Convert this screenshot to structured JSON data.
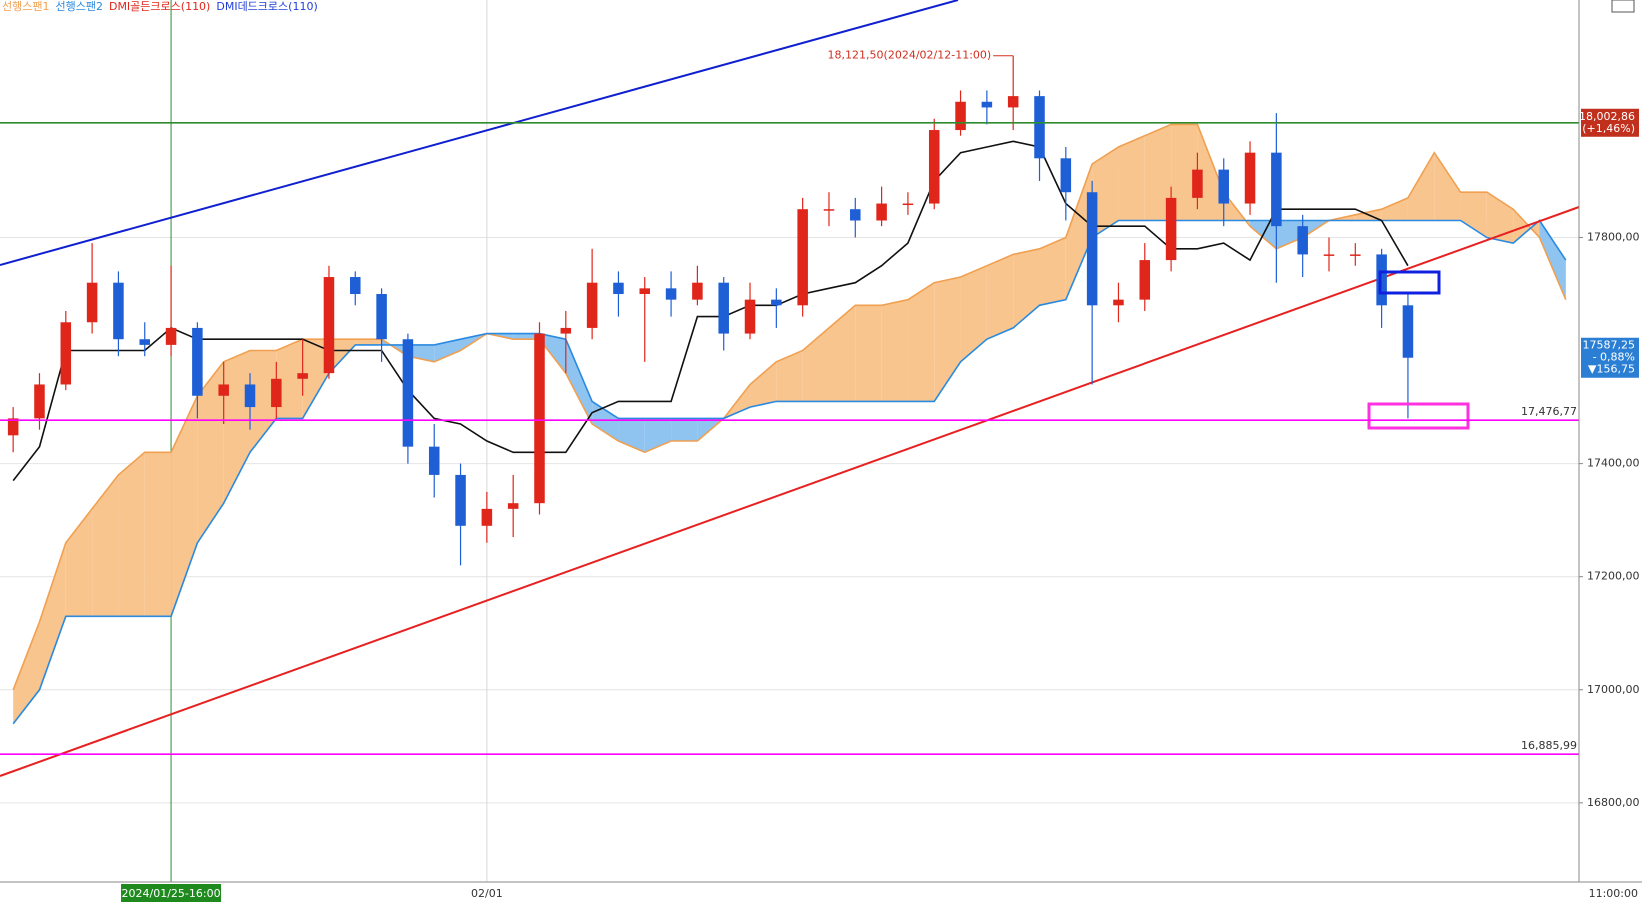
{
  "chart_data": {
    "type": "candlestick",
    "legend": [
      {
        "name": "선행스팬1",
        "color": "#f0a050"
      },
      {
        "name": "선행스팬2",
        "color": "#2a8ae0"
      },
      {
        "name": "DMI골든크로스(110)",
        "color": "#e0261b"
      },
      {
        "name": "DMI데드크로스(110)",
        "color": "#1f3fd6"
      }
    ],
    "categories": [
      null,
      null,
      null,
      null,
      null,
      null,
      "2024/01/25-16:00",
      null,
      null,
      null,
      null,
      null,
      null,
      null,
      null,
      null,
      null,
      null,
      "02/01",
      null,
      null,
      null,
      null,
      null,
      null,
      null,
      null,
      null,
      null,
      null,
      null,
      null,
      null,
      null,
      null,
      null,
      null,
      null,
      null,
      null,
      null,
      null,
      null,
      null,
      null,
      null,
      null,
      null,
      null,
      null,
      null,
      null,
      null,
      null,
      null,
      null,
      null,
      null,
      null,
      null
    ],
    "highlight_category": 6,
    "time_label": "11:00:00",
    "up_color": "#e0261b",
    "down_color": "#1f5fd6",
    "open": [
      17450,
      17480,
      17540,
      17650,
      17720,
      17620,
      17610,
      17640,
      17520,
      17540,
      17500,
      17550,
      17560,
      17730,
      17700,
      17620,
      17430,
      17380,
      17290,
      17320,
      17330,
      17630,
      17640,
      17720,
      17700,
      17710,
      17690,
      17720,
      17630,
      17690,
      17680,
      17850,
      17850,
      17830,
      17860,
      17860,
      17990,
      18040,
      18030,
      18050,
      17940,
      17880,
      17680,
      17690,
      17760,
      17870,
      17920,
      17860,
      17950,
      17820,
      17770,
      17770,
      17770,
      17680,
      null,
      null,
      null,
      null,
      null,
      null
    ],
    "high": [
      17500,
      17560,
      17670,
      17790,
      17740,
      17650,
      17750,
      17650,
      17580,
      17560,
      17580,
      17620,
      17750,
      17740,
      17710,
      17630,
      17470,
      17400,
      17350,
      17380,
      17650,
      17670,
      17780,
      17740,
      17730,
      17740,
      17750,
      17730,
      17720,
      17710,
      17870,
      17880,
      17870,
      17890,
      17880,
      18010,
      18060,
      18060,
      18121.5,
      18060,
      17960,
      17900,
      17720,
      17790,
      17890,
      17950,
      17940,
      17970,
      18020,
      17840,
      17800,
      17790,
      17780,
      17700,
      null,
      null,
      null,
      null,
      null,
      null
    ],
    "low": [
      17420,
      17460,
      17530,
      17630,
      17590,
      17590,
      17590,
      17480,
      17470,
      17460,
      17480,
      17520,
      17550,
      17680,
      17580,
      17400,
      17340,
      17220,
      17260,
      17270,
      17310,
      17560,
      17620,
      17660,
      17580,
      17660,
      17680,
      17600,
      17620,
      17640,
      17660,
      17820,
      17800,
      17820,
      17840,
      17850,
      17980,
      18000,
      17990,
      17900,
      17830,
      17540,
      17650,
      17670,
      17740,
      17850,
      17820,
      17840,
      17720,
      17730,
      17740,
      17750,
      17640,
      17480,
      null,
      null,
      null,
      null,
      null,
      null
    ],
    "close": [
      17480,
      17540,
      17650,
      17720,
      17620,
      17610,
      17640,
      17520,
      17540,
      17500,
      17550,
      17560,
      17730,
      17700,
      17620,
      17430,
      17380,
      17290,
      17320,
      17330,
      17630,
      17640,
      17720,
      17700,
      17710,
      17690,
      17720,
      17630,
      17690,
      17680,
      17850,
      17850,
      17830,
      17860,
      17860,
      17990,
      18040,
      18030,
      18050,
      17940,
      17880,
      17680,
      17690,
      17760,
      17870,
      17920,
      17860,
      17950,
      17820,
      17770,
      17770,
      17770,
      17680,
      17587.25,
      null,
      null,
      null,
      null,
      null,
      null
    ],
    "series": [
      {
        "name": "선행스팬1",
        "color": "#f0a050",
        "values": [
          17000,
          17120,
          17260,
          17320,
          17380,
          17420,
          17420,
          17520,
          17580,
          17600,
          17600,
          17620,
          17620,
          17620,
          17620,
          17590,
          17580,
          17600,
          17630,
          17620,
          17620,
          17560,
          17470,
          17440,
          17420,
          17440,
          17440,
          17480,
          17540,
          17580,
          17600,
          17640,
          17680,
          17680,
          17690,
          17720,
          17730,
          17750,
          17770,
          17780,
          17800,
          17930,
          17960,
          17980,
          18000,
          18000,
          17880,
          17820,
          17780,
          17800,
          17830,
          17840,
          17850,
          17870,
          17950,
          17880,
          17880,
          17850,
          17800,
          17690
        ]
      },
      {
        "name": "선행스팬2",
        "color": "#2a8ae0",
        "values": [
          16940,
          17000,
          17130,
          17130,
          17130,
          17130,
          17130,
          17260,
          17330,
          17420,
          17480,
          17480,
          17560,
          17610,
          17610,
          17610,
          17610,
          17620,
          17630,
          17630,
          17630,
          17620,
          17510,
          17480,
          17480,
          17480,
          17480,
          17480,
          17500,
          17510,
          17510,
          17510,
          17510,
          17510,
          17510,
          17510,
          17580,
          17620,
          17640,
          17680,
          17690,
          17800,
          17830,
          17830,
          17830,
          17830,
          17830,
          17830,
          17830,
          17830,
          17830,
          17830,
          17830,
          17830,
          17830,
          17830,
          17800,
          17790,
          17830,
          17760
        ]
      },
      {
        "color": "#111111",
        "values": [
          17370,
          17430,
          17600,
          17600,
          17600,
          17600,
          17640,
          17620,
          17620,
          17620,
          17620,
          17620,
          17600,
          17600,
          17600,
          17530,
          17480,
          17470,
          17440,
          17420,
          17420,
          17420,
          17490,
          17510,
          17510,
          17510,
          17660,
          17660,
          17680,
          17680,
          17700,
          17710,
          17720,
          17750,
          17790,
          17900,
          17950,
          17960,
          17970,
          17960,
          17860,
          17820,
          17820,
          17820,
          17780,
          17780,
          17790,
          17760,
          17850,
          17850,
          17850,
          17850,
          17830,
          17750,
          null,
          null,
          null,
          null,
          null,
          null
        ]
      }
    ],
    "cloud_colors": {
      "up": "#f9c58f",
      "down": "#8fc3f0"
    },
    "high_annotation": {
      "label": "18,121,50(2024/02/12-11:00)",
      "index": 38,
      "value": 18121.5,
      "color": "#d03020"
    },
    "hlines": [
      {
        "value": 18002.86,
        "color": "#2e8b2e"
      },
      {
        "value": 17476.77,
        "label": "17,476,77",
        "color": "#ff00ff"
      },
      {
        "value": 16885.99,
        "label": "16,885,99",
        "color": "#ff00ff"
      }
    ],
    "price_tags": [
      {
        "value": 18002.86,
        "lines": [
          "18,002,86",
          "(+1,46%)"
        ],
        "color": "#c0301c"
      },
      {
        "value": 17587.25,
        "lines": [
          "17587,25",
          "- 0,88%",
          "▼156,75"
        ],
        "color": "#2a7fd4"
      }
    ],
    "ylim": [
      16660,
      18220
    ],
    "yticks": [
      {
        "value": 16800,
        "label": "16800,00"
      },
      {
        "value": 17000,
        "label": "17000,00"
      },
      {
        "value": 17200,
        "label": "17200,00"
      },
      {
        "value": 17400,
        "label": "17400,00"
      },
      {
        "value": 17800,
        "label": "17800,00"
      }
    ],
    "grid": true
  }
}
